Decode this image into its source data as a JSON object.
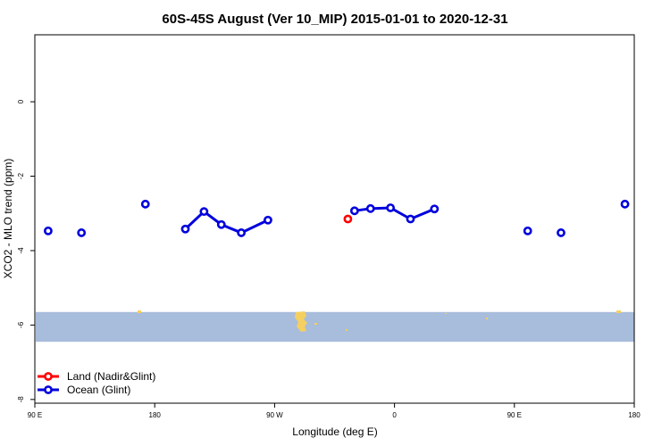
{
  "chart_data": {
    "type": "scatter",
    "title": "60S-45S August (Ver 10_MIP)   2015-01-01 to 2020-12-31",
    "xlabel": "Longitude (deg E)",
    "ylabel": "XCO2 - MLO trend (ppm)",
    "xlim": [
      90,
      540
    ],
    "ylim": [
      -8.1,
      1.8
    ],
    "x_ticks": [
      {
        "value": 90,
        "label": "90 E"
      },
      {
        "value": 180,
        "label": "180"
      },
      {
        "value": 270,
        "label": "90 W"
      },
      {
        "value": 360,
        "label": "0"
      },
      {
        "value": 450,
        "label": "90 E"
      },
      {
        "value": 540,
        "label": "180"
      }
    ],
    "y_ticks": [
      {
        "value": 0,
        "label": "0"
      },
      {
        "value": -2,
        "label": "-2"
      },
      {
        "value": -4,
        "label": "-4"
      },
      {
        "value": -6,
        "label": "-6"
      },
      {
        "value": -8,
        "label": "-8"
      }
    ],
    "series": [
      {
        "name": "Land (Nadir&Glint)",
        "color": "#ff0000",
        "segments": [
          [
            [
              325,
              -3.15
            ]
          ]
        ]
      },
      {
        "name": "Ocean (Glint)",
        "color": "#0000dd",
        "segments": [
          [
            [
              100,
              -3.47
            ]
          ],
          [
            [
              125,
              -3.52
            ]
          ],
          [
            [
              173,
              -2.75
            ]
          ],
          [
            [
              203,
              -3.42
            ],
            [
              217,
              -2.95
            ],
            [
              230,
              -3.3
            ],
            [
              245,
              -3.52
            ],
            [
              265,
              -3.18
            ]
          ],
          [
            [
              330,
              -2.93
            ],
            [
              342,
              -2.87
            ],
            [
              357,
              -2.85
            ],
            [
              372,
              -3.15
            ],
            [
              390,
              -2.88
            ]
          ],
          [
            [
              460,
              -3.47
            ]
          ],
          [
            [
              485,
              -3.52
            ]
          ],
          [
            [
              533,
              -2.75
            ]
          ]
        ]
      }
    ],
    "map_band": {
      "y_top": -5.65,
      "y_bottom": -6.45,
      "color": "#a8bcdc",
      "land_color": "#f5d060"
    },
    "legend_position": "bottom-left"
  }
}
